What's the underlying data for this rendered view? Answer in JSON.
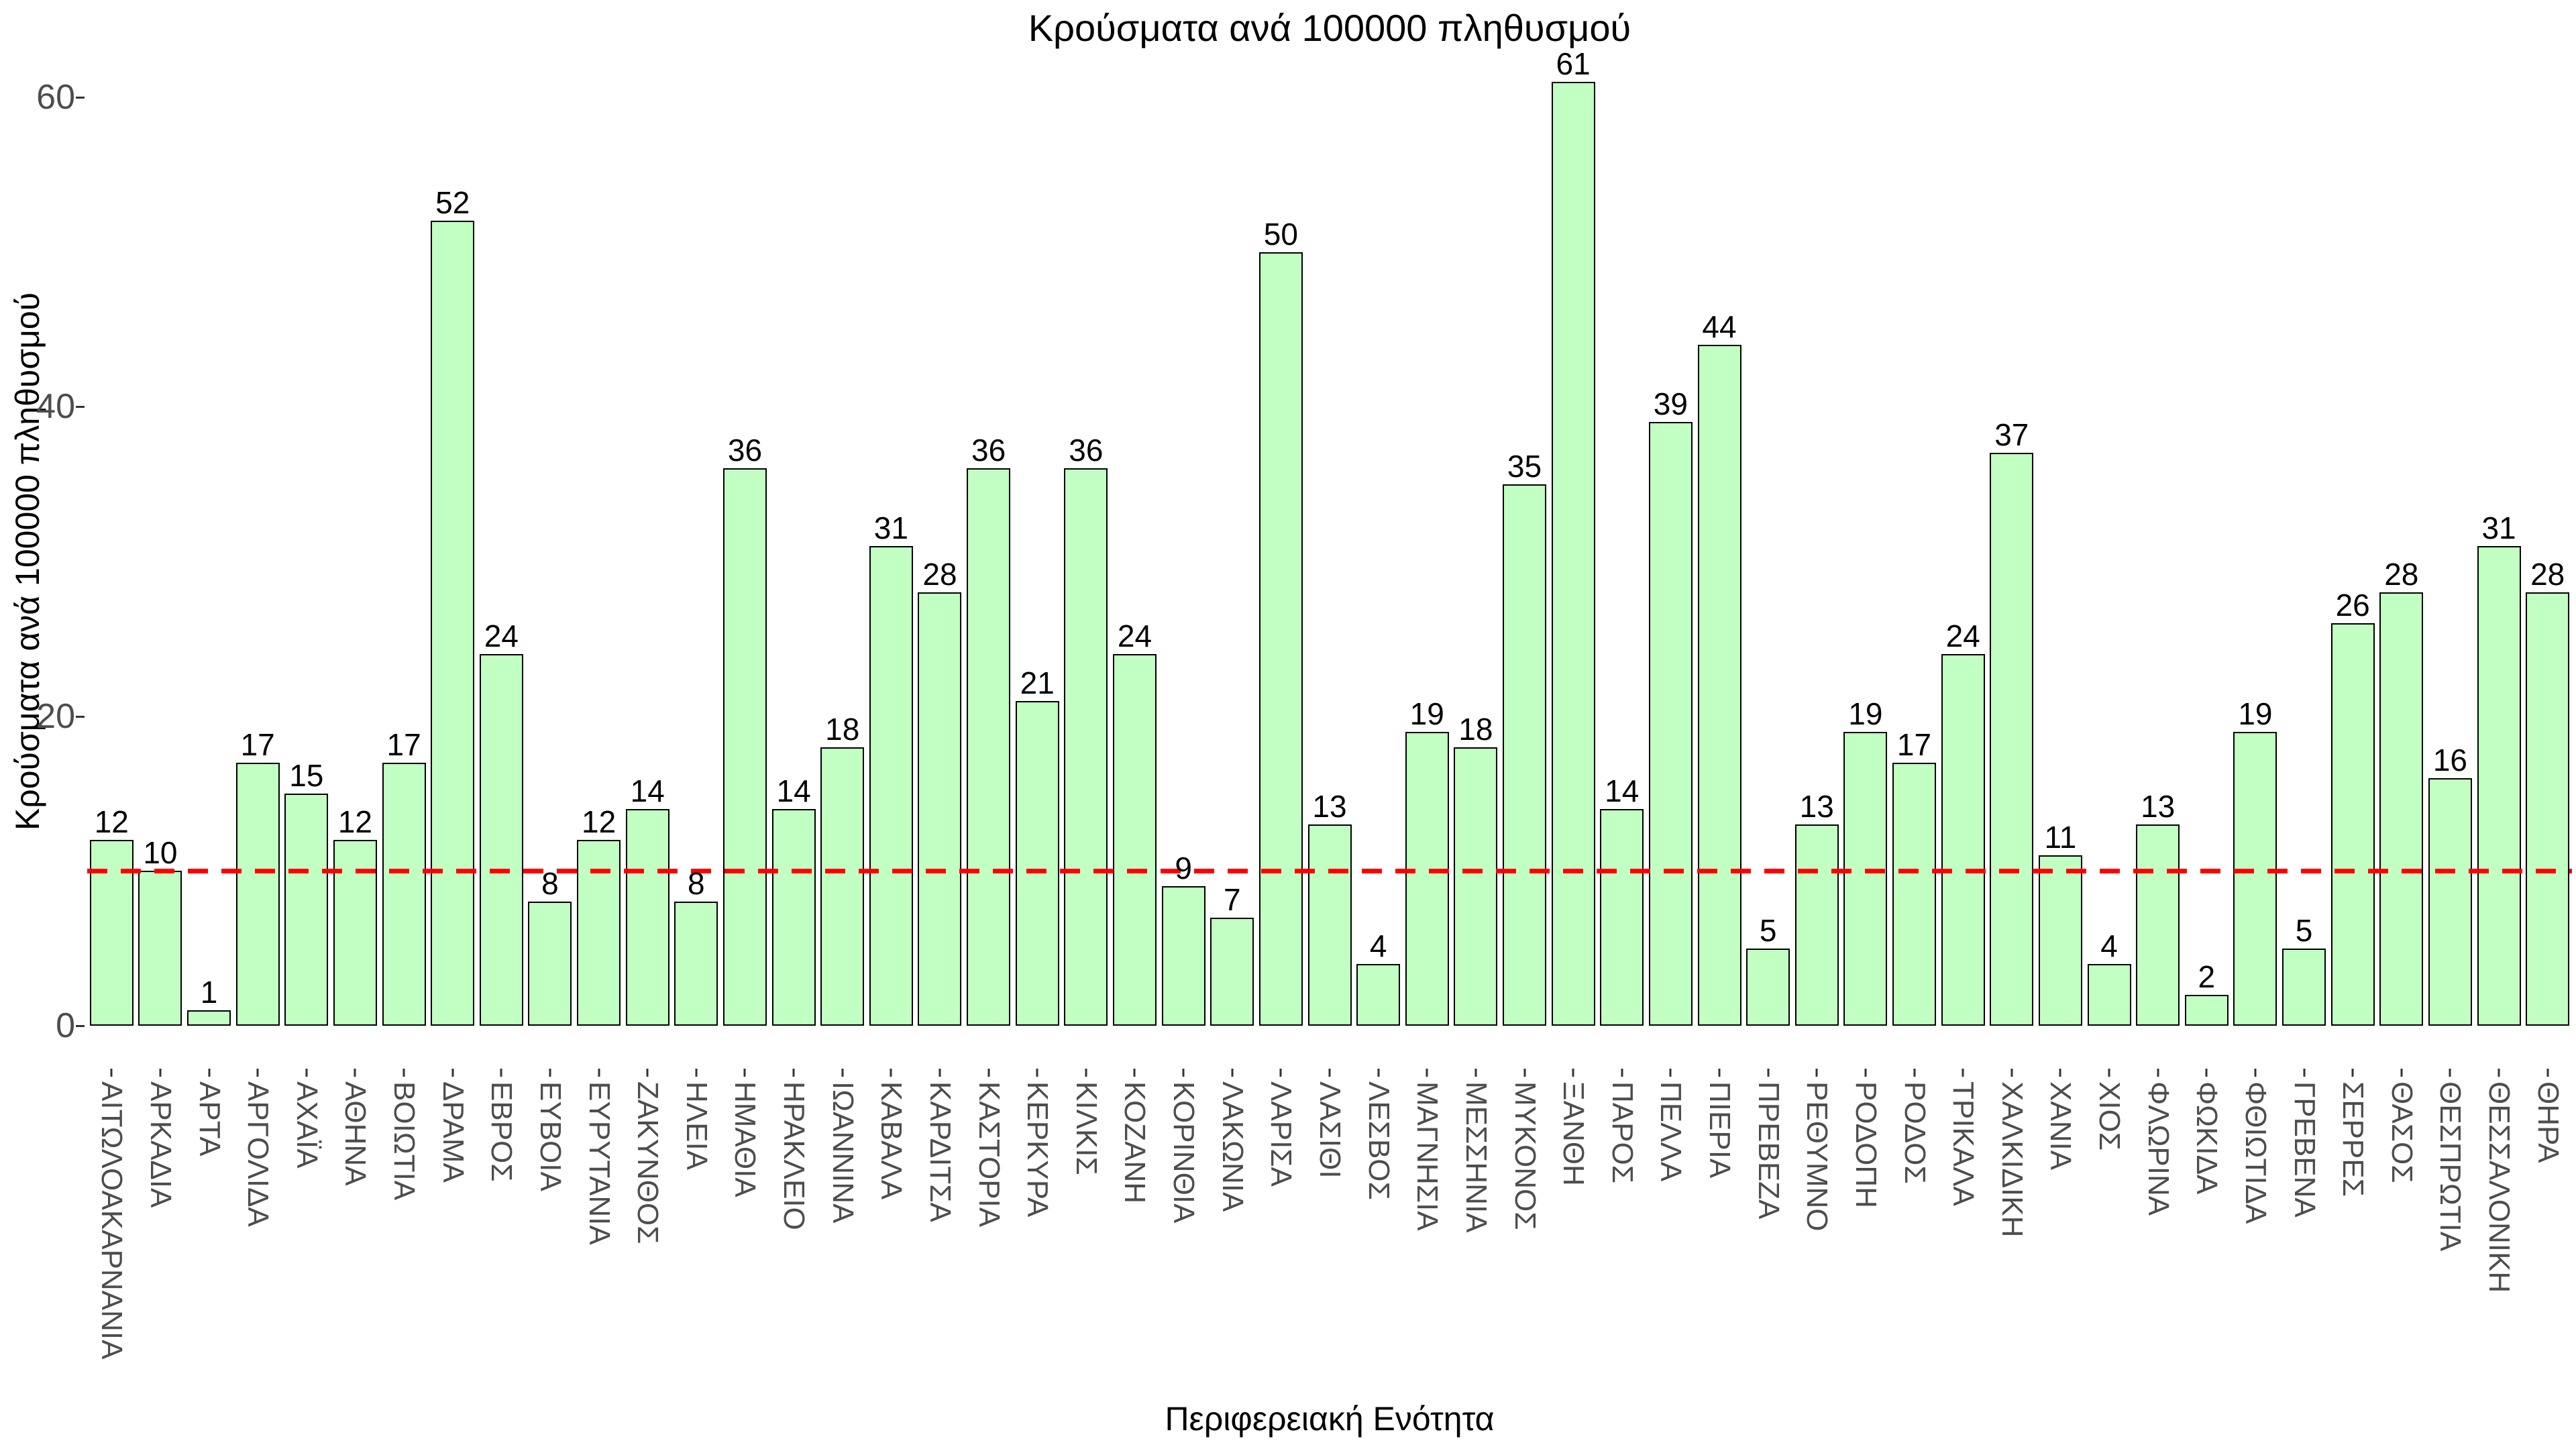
{
  "chart_data": {
    "type": "bar",
    "title": "Κρούσματα ανά 100000 πληθυσμού",
    "xlabel": "Περιφερειακή Ενότητα",
    "ylabel": "Κρούσματα ανά 100000 πληθυσμού",
    "categories": [
      "ΑΙΤΩΛΟΑΚΑΡΝΑΝΙΑ",
      "ΑΡΚΑΔΙΑ",
      "ΑΡΤΑ",
      "ΑΡΓΟΛΙΔΑ",
      "ΑΧΑΪΑ",
      "ΑΘΗΝΑ",
      "ΒΟΙΩΤΙΑ",
      "ΔΡΑΜΑ",
      "ΕΒΡΟΣ",
      "ΕΥΒΟΙΑ",
      "ΕΥΡΥΤΑΝΙΑ",
      "ΖΑΚΥΝΘΟΣ",
      "ΗΛΕΙΑ",
      "ΗΜΑΘΙΑ",
      "ΗΡΑΚΛΕΙΟ",
      "ΙΩΑΝΝΙΝΑ",
      "ΚΑΒΑΛΑ",
      "ΚΑΡΔΙΤΣΑ",
      "ΚΑΣΤΟΡΙΑ",
      "ΚΕΡΚΥΡΑ",
      "ΚΙΛΚΙΣ",
      "ΚΟΖΑΝΗ",
      "ΚΟΡΙΝΘΙΑ",
      "ΛΑΚΩΝΙΑ",
      "ΛΑΡΙΣΑ",
      "ΛΑΣΙΘΙ",
      "ΛΕΣΒΟΣ",
      "ΜΑΓΝΗΣΙΑ",
      "ΜΕΣΣΗΝΙΑ",
      "ΜΥΚΟΝΟΣ",
      "ΞΑΝΘΗ",
      "ΠΑΡΟΣ",
      "ΠΕΛΛΑ",
      "ΠΙΕΡΙΑ",
      "ΠΡΕΒΕΖΑ",
      "ΡΕΘΥΜΝΟ",
      "ΡΟΔΟΠΗ",
      "ΡΟΔΟΣ",
      "ΤΡΙΚΑΛΑ",
      "ΧΑΛΚΙΔΙΚΗ",
      "ΧΑΝΙΑ",
      "ΧΙΟΣ",
      "ΦΛΩΡΙΝΑ",
      "ΦΩΚΙΔΑ",
      "ΦΘΙΩΤΙΔΑ",
      "ΓΡΕΒΕΝΑ",
      "ΣΕΡΡΕΣ",
      "ΘΑΣΟΣ",
      "ΘΕΣΠΡΩΤΙΑ",
      "ΘΕΣΣΑΛΟΝΙΚΗ",
      "ΘΗΡΑ"
    ],
    "values": [
      12,
      10,
      1,
      17,
      15,
      12,
      17,
      52,
      24,
      8,
      12,
      14,
      8,
      36,
      14,
      18,
      31,
      28,
      36,
      21,
      36,
      24,
      9,
      7,
      50,
      13,
      4,
      19,
      18,
      35,
      61,
      14,
      39,
      44,
      5,
      13,
      19,
      17,
      24,
      37,
      11,
      4,
      13,
      2,
      19,
      5,
      26,
      28,
      16,
      31,
      28
    ],
    "bar_labels": true,
    "yticks": [
      0,
      20,
      40,
      60
    ],
    "ylim": [
      0,
      62
    ],
    "grid": false,
    "legend": false,
    "refline": {
      "value": 10,
      "style": "dashed",
      "color": "#FF0000"
    },
    "colors": {
      "bar_fill": "#C2FFC2",
      "bar_border": "#000000",
      "value_label": "#000000",
      "axis_text": "#4D4D4D",
      "tick_mark": "#333333",
      "title_text": "#000000",
      "background": "#FFFFFF"
    }
  }
}
